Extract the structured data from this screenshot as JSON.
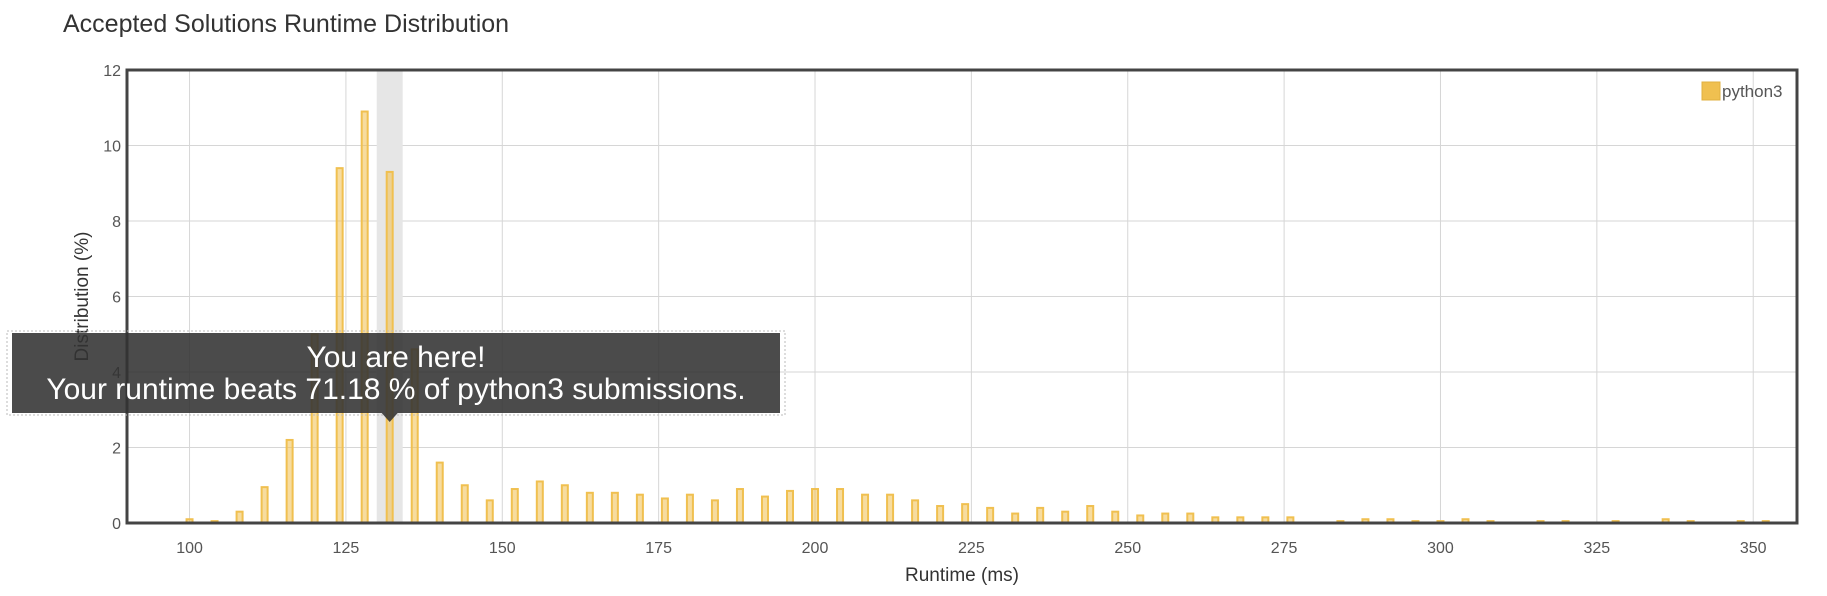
{
  "chart_data": {
    "type": "bar",
    "title": "Accepted Solutions Runtime Distribution",
    "xlabel": "Runtime (ms)",
    "ylabel": "Distribution (%)",
    "xlim": [
      90,
      357
    ],
    "ylim": [
      0,
      12
    ],
    "x_ticks": [
      100,
      125,
      150,
      175,
      200,
      225,
      250,
      275,
      300,
      325,
      350
    ],
    "y_ticks": [
      0,
      2,
      4,
      6,
      8,
      10,
      12
    ],
    "grid": true,
    "legend_position": "top-right",
    "series": [
      {
        "name": "python3",
        "color": "#f0c050",
        "points": [
          [
            100,
            0.1
          ],
          [
            104,
            0.05
          ],
          [
            108,
            0.3
          ],
          [
            112,
            0.95
          ],
          [
            116,
            2.2
          ],
          [
            120,
            5.0
          ],
          [
            124,
            9.4
          ],
          [
            128,
            10.9
          ],
          [
            132,
            9.3
          ],
          [
            136,
            4.6
          ],
          [
            140,
            1.6
          ],
          [
            144,
            1.0
          ],
          [
            148,
            0.6
          ],
          [
            152,
            0.9
          ],
          [
            156,
            1.1
          ],
          [
            160,
            1.0
          ],
          [
            164,
            0.8
          ],
          [
            168,
            0.8
          ],
          [
            172,
            0.75
          ],
          [
            176,
            0.65
          ],
          [
            180,
            0.75
          ],
          [
            184,
            0.6
          ],
          [
            188,
            0.9
          ],
          [
            192,
            0.7
          ],
          [
            196,
            0.85
          ],
          [
            200,
            0.9
          ],
          [
            204,
            0.9
          ],
          [
            208,
            0.75
          ],
          [
            212,
            0.75
          ],
          [
            216,
            0.6
          ],
          [
            220,
            0.45
          ],
          [
            224,
            0.5
          ],
          [
            228,
            0.4
          ],
          [
            232,
            0.25
          ],
          [
            236,
            0.4
          ],
          [
            240,
            0.3
          ],
          [
            244,
            0.45
          ],
          [
            248,
            0.3
          ],
          [
            252,
            0.2
          ],
          [
            256,
            0.25
          ],
          [
            260,
            0.25
          ],
          [
            264,
            0.15
          ],
          [
            268,
            0.15
          ],
          [
            272,
            0.15
          ],
          [
            276,
            0.15
          ],
          [
            284,
            0.05
          ],
          [
            288,
            0.1
          ],
          [
            292,
            0.1
          ],
          [
            296,
            0.05
          ],
          [
            300,
            0.05
          ],
          [
            304,
            0.1
          ],
          [
            308,
            0.05
          ],
          [
            316,
            0.05
          ],
          [
            320,
            0.05
          ],
          [
            328,
            0.05
          ],
          [
            336,
            0.1
          ],
          [
            340,
            0.05
          ],
          [
            348,
            0.05
          ],
          [
            352,
            0.05
          ]
        ]
      }
    ],
    "highlight_x": 132,
    "tooltip": {
      "line1": "You are here!",
      "line2": "Your runtime beats 71.18 % of python3 submissions."
    }
  }
}
